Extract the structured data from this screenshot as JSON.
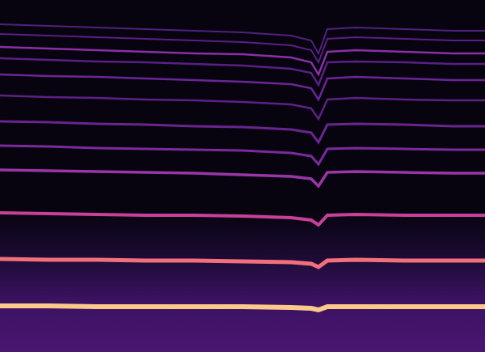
{
  "chart_data": {
    "type": "spectrogram",
    "tick_labels": false,
    "xlim": [
      0,
      600
    ],
    "ylim": [
      0,
      435
    ],
    "x": [
      0,
      60,
      120,
      180,
      240,
      300,
      360,
      385,
      394,
      405,
      440,
      500,
      560,
      600
    ],
    "series": [
      {
        "color": "#fcc98a",
        "values": [
          57,
          57,
          56,
          56,
          56,
          56,
          55,
          54,
          52,
          56,
          56,
          56,
          56,
          56
        ]
      },
      {
        "color": "#f2707a",
        "values": [
          115,
          114,
          114,
          113,
          113,
          112,
          111,
          109,
          105,
          113,
          114,
          113,
          113,
          113
        ]
      },
      {
        "color": "#c8409a",
        "values": [
          172,
          171,
          170,
          169,
          169,
          168,
          166,
          163,
          157,
          169,
          170,
          169,
          169,
          169
        ]
      },
      {
        "color": "#9a35a8",
        "values": [
          225,
          224,
          223,
          222,
          221,
          219,
          217,
          214,
          205,
          222,
          223,
          222,
          221,
          221
        ]
      },
      {
        "color": "#7a2a9c",
        "values": [
          255,
          254,
          252,
          251,
          250,
          249,
          246,
          242,
          232,
          251,
          252,
          251,
          250,
          250
        ]
      },
      {
        "color": "#6a2490",
        "values": [
          285,
          284,
          282,
          281,
          279,
          278,
          275,
          271,
          259,
          281,
          282,
          281,
          279,
          279
        ]
      },
      {
        "color": "#5e2088",
        "values": [
          317,
          315,
          314,
          312,
          311,
          309,
          306,
          301,
          288,
          312,
          314,
          312,
          311,
          311
        ]
      },
      {
        "color": "#6c2596",
        "values": [
          343,
          341,
          340,
          338,
          336,
          334,
          331,
          326,
          312,
          338,
          340,
          338,
          336,
          336
        ]
      },
      {
        "color": "#5a1f86",
        "values": [
          363,
          361,
          359,
          358,
          356,
          354,
          350,
          345,
          330,
          358,
          359,
          358,
          356,
          356
        ]
      },
      {
        "color": "#8a2fa6",
        "values": [
          377,
          375,
          373,
          371,
          369,
          368,
          364,
          358,
          343,
          371,
          373,
          371,
          369,
          369
        ]
      },
      {
        "color": "#5a1f86",
        "values": [
          393,
          391,
          389,
          387,
          385,
          383,
          379,
          373,
          358,
          387,
          389,
          387,
          385,
          385
        ]
      },
      {
        "color": "#52207e",
        "values": [
          405,
          403,
          401,
          399,
          397,
          395,
          391,
          385,
          369,
          399,
          401,
          399,
          397,
          397
        ]
      }
    ]
  }
}
